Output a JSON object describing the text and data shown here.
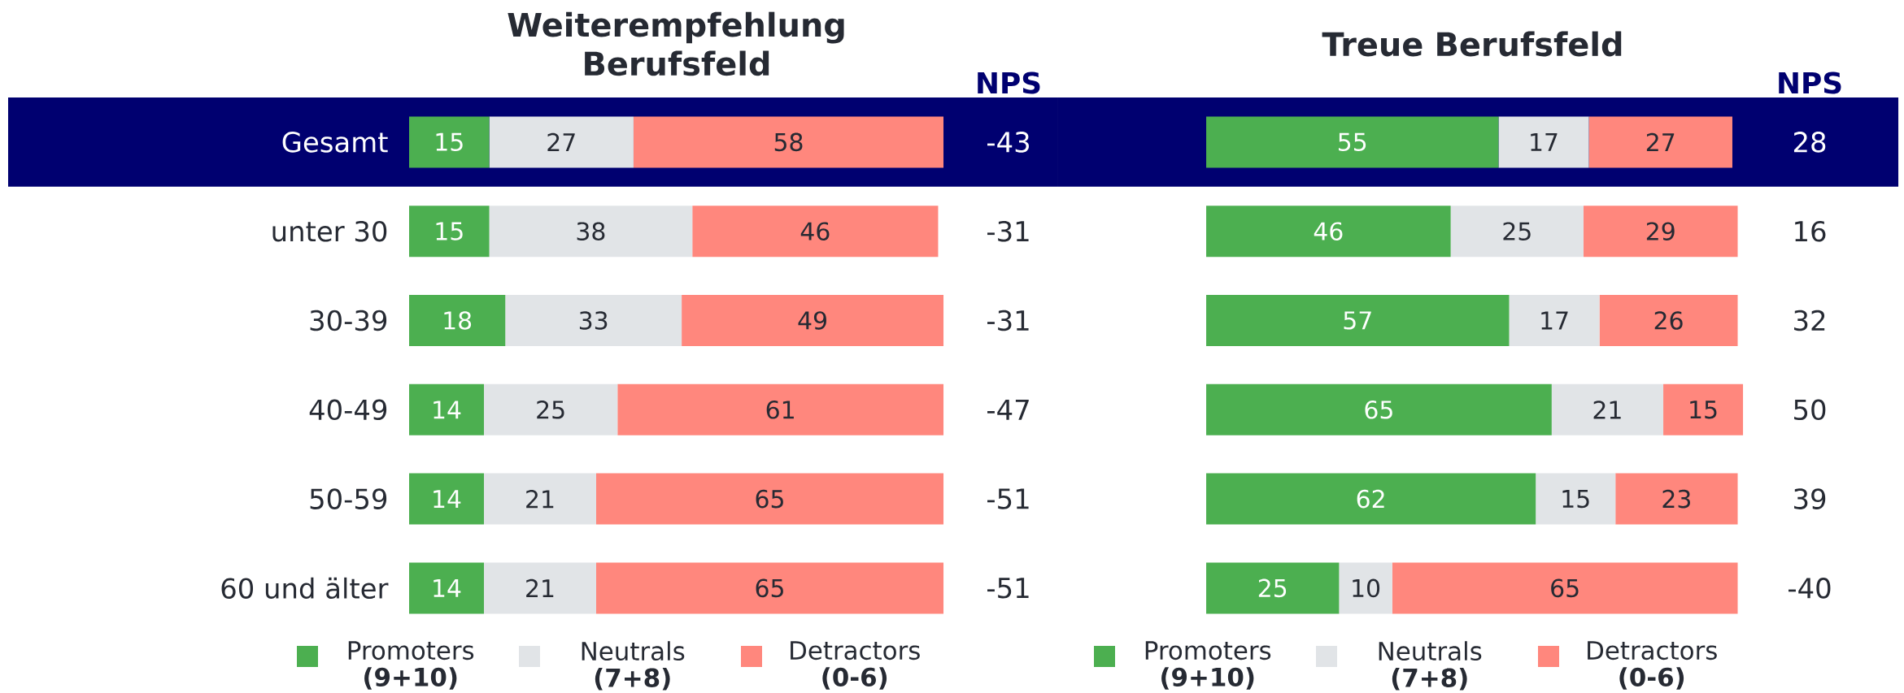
{
  "chart_data": [
    {
      "type": "bar",
      "orientation": "horizontal",
      "stacked": true,
      "data_labels": true,
      "legend": "bottom",
      "title": "Weiterempfehlung Berufsfeld",
      "categories": [
        "Gesamt",
        "unter 30",
        "30-39",
        "40-49",
        "50-59",
        "60 und älter"
      ],
      "series": [
        {
          "name": "Promoters **(9+10)**",
          "color": "#4caf50",
          "values": [
            15,
            15,
            18,
            14,
            14,
            14
          ]
        },
        {
          "name": "Neutrals **(7+8)**",
          "color": "#e1e4e7",
          "values": [
            27,
            38,
            33,
            25,
            21,
            21
          ]
        },
        {
          "name": "Detractors **(0-6)**",
          "color": "#ff877d",
          "values": [
            58,
            46,
            49,
            61,
            65,
            65
          ]
        }
      ],
      "bands": [
        {
          "axis": "y",
          "from": "Gesamt",
          "to": "Gesamt",
          "color": "#000070"
        }
      ],
      "annotations": [
        "NPS",
        "-43",
        "-31",
        "-31",
        "-47",
        "-51",
        "-51"
      ]
    },
    {
      "type": "bar",
      "orientation": "horizontal",
      "stacked": true,
      "data_labels": true,
      "legend": "bottom",
      "title": "Treue Berufsfeld",
      "categories": [
        "Gesamt",
        "unter 30",
        "30-39",
        "40-49",
        "50-59",
        "60 und älter"
      ],
      "tick_labels": false,
      "series": [
        {
          "name": "Promoters **(9+10)**",
          "color": "#4caf50",
          "values": [
            55,
            46,
            57,
            65,
            62,
            25
          ]
        },
        {
          "name": "Neutrals **(7+8)**",
          "color": "#e1e4e7",
          "values": [
            17,
            25,
            17,
            21,
            15,
            10
          ]
        },
        {
          "name": "Detractors **(0-6)**",
          "color": "#ff877d",
          "values": [
            27,
            29,
            26,
            15,
            23,
            65
          ]
        }
      ],
      "bands": [
        {
          "axis": "y",
          "from": "Gesamt",
          "to": "Gesamt",
          "color": "#000070"
        }
      ],
      "annotations": [
        "NPS",
        "28",
        "16",
        "32",
        "50",
        "39",
        "-40"
      ]
    }
  ]
}
